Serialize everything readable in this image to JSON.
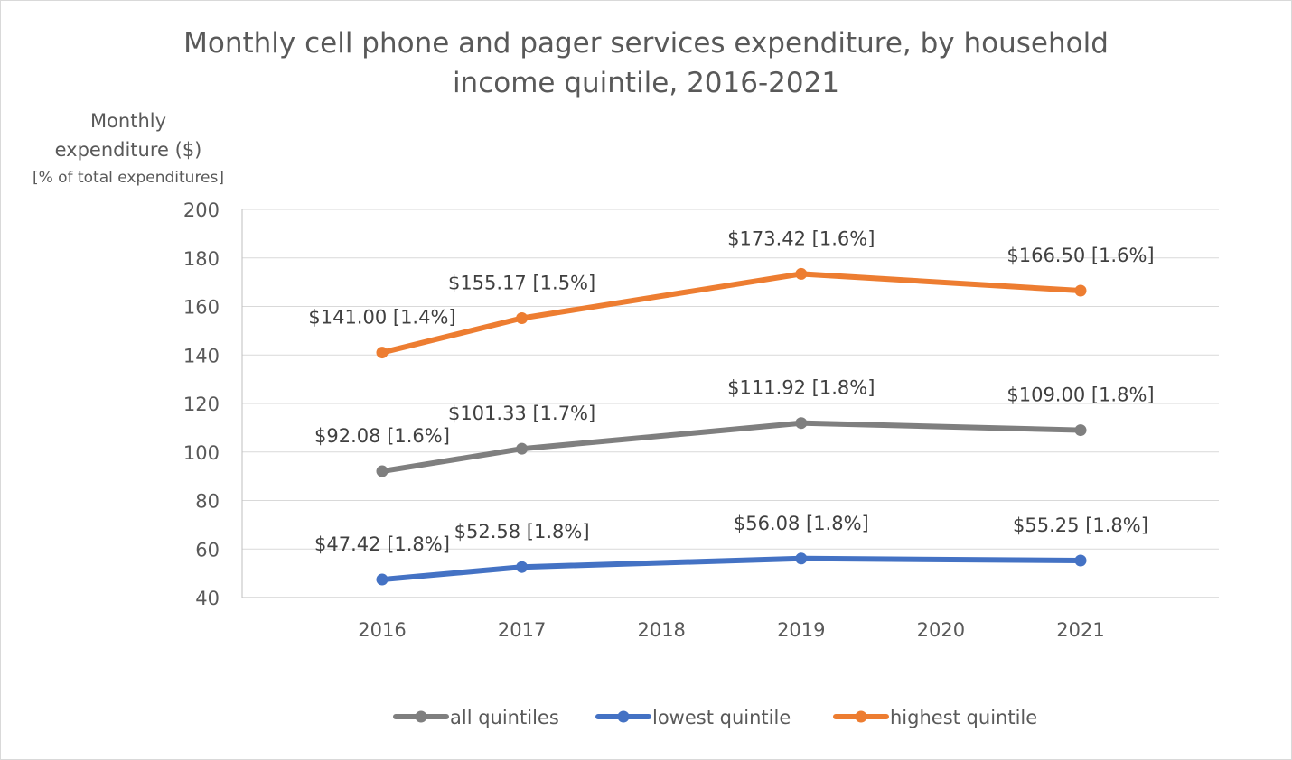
{
  "chart_data": {
    "type": "line",
    "title_line1": "Monthly cell phone and pager services expenditure, by household",
    "title_line2": "income quintile, 2016-2021",
    "ylabel_line1": "Monthly",
    "ylabel_line2": "expenditure ($)",
    "ylabel_line3": "[% of total expenditures]",
    "x": [
      2016,
      2017,
      2018,
      2019,
      2020,
      2021
    ],
    "ylim": [
      40,
      200
    ],
    "yticks": [
      40,
      60,
      80,
      100,
      120,
      140,
      160,
      180,
      200
    ],
    "grid": true,
    "legend_position": "bottom",
    "series": [
      {
        "name": "all quintiles",
        "color": "#7f7f7f",
        "points": [
          {
            "x": 2016,
            "y": 92.08,
            "label": "$92.08 [1.6%]"
          },
          {
            "x": 2017,
            "y": 101.33,
            "label": "$101.33 [1.7%]"
          },
          {
            "x": 2019,
            "y": 111.92,
            "label": "$111.92 [1.8%]"
          },
          {
            "x": 2021,
            "y": 109.0,
            "label": "$109.00 [1.8%]"
          }
        ]
      },
      {
        "name": "lowest quintile",
        "color": "#4472c4",
        "points": [
          {
            "x": 2016,
            "y": 47.42,
            "label": "$47.42 [1.8%]"
          },
          {
            "x": 2017,
            "y": 52.58,
            "label": "$52.58 [1.8%]"
          },
          {
            "x": 2019,
            "y": 56.08,
            "label": "$56.08 [1.8%]"
          },
          {
            "x": 2021,
            "y": 55.25,
            "label": "$55.25 [1.8%]"
          }
        ]
      },
      {
        "name": "highest quintile",
        "color": "#ed7d31",
        "points": [
          {
            "x": 2016,
            "y": 141.0,
            "label": "$141.00 [1.4%]"
          },
          {
            "x": 2017,
            "y": 155.17,
            "label": "$155.17 [1.5%]"
          },
          {
            "x": 2019,
            "y": 173.42,
            "label": "$173.42 [1.6%]"
          },
          {
            "x": 2021,
            "y": 166.5,
            "label": "$166.50 [1.6%]"
          }
        ]
      }
    ]
  }
}
